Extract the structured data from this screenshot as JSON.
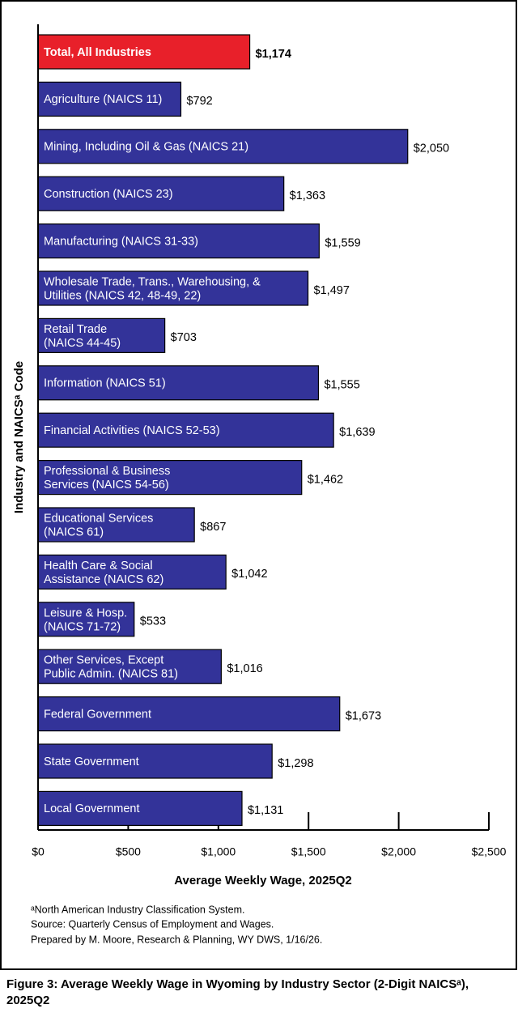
{
  "chart_data": {
    "type": "barh",
    "categories": [
      "Total, All Industries",
      "Agriculture (NAICS 11)",
      "Mining, Including Oil & Gas (NAICS 21)",
      "Construction (NAICS 23)",
      "Manufacturing (NAICS 31-33)",
      "Wholesale Trade, Trans., Warehousing, &\nUtilities (NAICS 42, 48-49, 22)",
      "Retail Trade\n(NAICS 44-45)",
      "Information (NAICS 51)",
      "Financial Activities (NAICS 52-53)",
      "Professional & Business\nServices (NAICS 54-56)",
      "Educational Services\n(NAICS 61)",
      "Health Care & Social\nAssistance (NAICS 62)",
      "Leisure & Hosp.\n(NAICS 71-72)",
      "Other Services, Except\nPublic Admin. (NAICS 81)",
      "Federal Government",
      "State Government",
      "Local Government"
    ],
    "values": [
      1174,
      792,
      2050,
      1363,
      1559,
      1497,
      703,
      1555,
      1639,
      1462,
      867,
      1042,
      533,
      1016,
      1673,
      1298,
      1131
    ],
    "value_labels": [
      "$1,174",
      "$792",
      "$2,050",
      "$1,363",
      "$1,559",
      "$1,497",
      "$703",
      "$1,555",
      "$1,639",
      "$1,462",
      "$867",
      "$1,042",
      "$533",
      "$1,016",
      "$1,673",
      "$1,298",
      "$1,131"
    ],
    "colors": [
      "#e8202a",
      "#333399",
      "#333399",
      "#333399",
      "#333399",
      "#333399",
      "#333399",
      "#333399",
      "#333399",
      "#333399",
      "#333399",
      "#333399",
      "#333399",
      "#333399",
      "#333399",
      "#333399",
      "#333399"
    ],
    "xlim": [
      0,
      2500
    ],
    "xticks": [
      {
        "value": 0,
        "label": "$0"
      },
      {
        "value": 500,
        "label": "$500"
      },
      {
        "value": 1000,
        "label": "$1,000"
      },
      {
        "value": 1500,
        "label": "$1,500"
      },
      {
        "value": 2000,
        "label": "$2,000"
      },
      {
        "value": 2500,
        "label": "$2,500"
      }
    ],
    "xlabel": "Average Weekly Wage, 2025Q2",
    "ylabel": "Industry and NAICSᵃ Code",
    "footnotes": [
      "ᵃNorth American Industry Classification System.",
      "Source: Quarterly Census of Employment and Wages.",
      "Prepared by M. Moore, Research & Planning, WY DWS, 1/16/26."
    ],
    "caption": "Figure 3: Average Weekly Wage in Wyoming by Industry Sector (2-Digit NAICSᵃ), 2025Q2"
  }
}
